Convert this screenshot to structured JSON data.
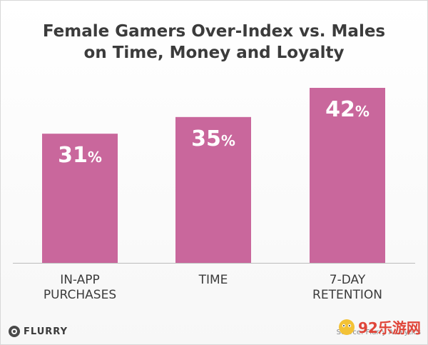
{
  "chart_data": {
    "type": "bar",
    "title": "Female Gamers Over-Index vs. Males on Time, Money and Loyalty",
    "title_lines": [
      "Female Gamers Over-Index vs. Males",
      "on Time, Money and Loyalty"
    ],
    "categories": [
      "IN-APP PURCHASES",
      "TIME",
      "7-DAY RETENTION"
    ],
    "category_lines": [
      [
        "IN-APP",
        "PURCHASES"
      ],
      [
        "TIME"
      ],
      [
        "7-DAY",
        "RETENTION"
      ]
    ],
    "values": [
      31,
      35,
      42
    ],
    "value_labels": [
      "31",
      "35",
      "42"
    ],
    "unit": "%",
    "xlabel": "",
    "ylabel": "",
    "ylim": [
      0,
      48
    ],
    "grid": false,
    "legend": "none",
    "bar_color": "#c9679c",
    "label_color": "#ffffff"
  },
  "footer": {
    "logo_text": "FLURRY",
    "source": "Source: Flurry Analytics"
  },
  "watermark": {
    "text": "92乐游网"
  },
  "colors": {
    "title": "#3b3b3b",
    "axis_text": "#3b3b3b",
    "baseline": "#bdbdbd"
  }
}
